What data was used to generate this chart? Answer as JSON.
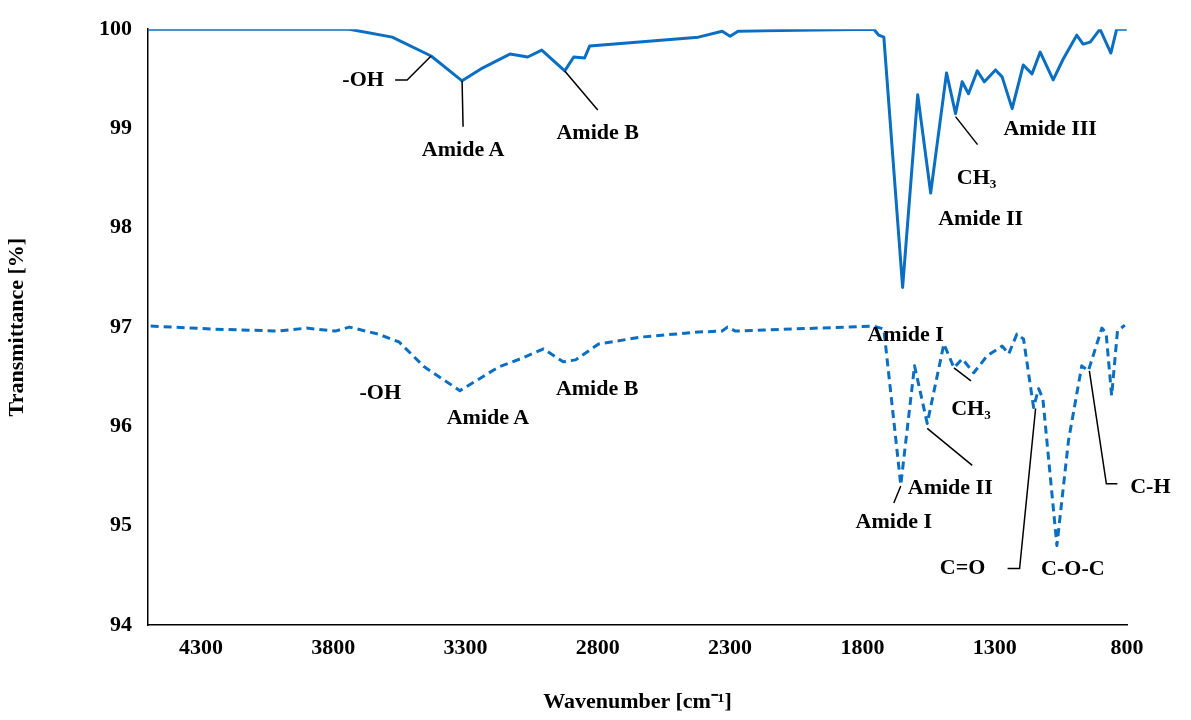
{
  "chart_data": {
    "type": "line",
    "xlabel": "Wavenumber [cm⁻¹]",
    "ylabel": "Transmittance [%]",
    "xlim": [
      4500,
      800
    ],
    "xticks": [
      4300,
      3800,
      3300,
      2800,
      2300,
      1800,
      1300,
      800
    ],
    "ylim": [
      94,
      100
    ],
    "yticks": [
      94,
      95,
      96,
      97,
      98,
      99,
      100
    ],
    "grid": false,
    "marker": "none",
    "series": [
      {
        "color": "#0a6fc2",
        "line_style": "solid",
        "x": [
          4500,
          3739,
          3577,
          3430,
          3313,
          3242,
          3132,
          3065,
          3012,
          2925,
          2891,
          2850,
          2831,
          2420,
          2330,
          2300,
          2270,
          1757,
          1738,
          1719,
          1648,
          1591,
          1542,
          1482,
          1448,
          1423,
          1399,
          1366,
          1339,
          1297,
          1272,
          1234,
          1192,
          1159,
          1128,
          1079,
          1041,
          990,
          966,
          939,
          902,
          861,
          839,
          801
        ],
        "values": [
          100.0,
          100.0,
          99.92,
          99.73,
          99.48,
          99.6,
          99.75,
          99.72,
          99.79,
          99.58,
          99.72,
          99.71,
          99.83,
          99.92,
          99.98,
          99.93,
          99.98,
          100.0,
          99.94,
          99.92,
          97.4,
          99.34,
          98.35,
          99.56,
          99.15,
          99.47,
          99.35,
          99.58,
          99.47,
          99.59,
          99.52,
          99.2,
          99.64,
          99.55,
          99.77,
          99.49,
          99.7,
          99.94,
          99.85,
          99.87,
          100.0,
          99.76,
          100.0,
          100.0
        ]
      },
      {
        "color": "#0a6fc2",
        "line_style": "dashed",
        "x": [
          4490,
          4250,
          4008,
          3901,
          3792,
          3739,
          3631,
          3551,
          3456,
          3321,
          3174,
          3093,
          3005,
          2931,
          2884,
          2797,
          2635,
          2420,
          2330,
          2310,
          2280,
          1757,
          1719,
          1655,
          1603,
          1555,
          1492,
          1454,
          1423,
          1379,
          1329,
          1272,
          1247,
          1216,
          1191,
          1153,
          1134,
          1118,
          1065,
          1021,
          971,
          946,
          895,
          879,
          858,
          836,
          808
        ],
        "values": [
          97.01,
          96.98,
          96.96,
          96.99,
          96.96,
          97.0,
          96.93,
          96.85,
          96.6,
          96.36,
          96.6,
          96.68,
          96.78,
          96.65,
          96.67,
          96.83,
          96.9,
          96.95,
          96.96,
          97.0,
          96.96,
          97.01,
          96.98,
          95.41,
          96.61,
          96.03,
          96.83,
          96.59,
          96.68,
          96.54,
          96.71,
          96.81,
          96.73,
          96.93,
          96.88,
          96.19,
          96.38,
          96.28,
          94.8,
          95.86,
          96.61,
          96.56,
          96.99,
          96.94,
          96.31,
          96.96,
          97.02
        ]
      }
    ],
    "annotations": [
      {
        "text": "-OH",
        "x": 3430,
        "y": 99.73
      },
      {
        "text": "Amide A",
        "x": 3313,
        "y": 99.48
      },
      {
        "text": "Amide B",
        "x": 2925,
        "y": 99.58
      },
      {
        "text": "Amide I",
        "x": 1648,
        "y": 97.4
      },
      {
        "text": "Amide II",
        "x": 1542,
        "y": 98.35
      },
      {
        "text": "CH₃",
        "x": 1448,
        "y": 99.15
      },
      {
        "text": "Amide III",
        "x": 1234,
        "y": 99.2
      },
      {
        "text": "-OH",
        "x": 3456,
        "y": 96.6
      },
      {
        "text": "Amide A",
        "x": 3321,
        "y": 96.36
      },
      {
        "text": "Amide B",
        "x": 2931,
        "y": 96.65
      },
      {
        "text": "Amide I",
        "x": 1655,
        "y": 95.41
      },
      {
        "text": "Amide II",
        "x": 1555,
        "y": 96.03
      },
      {
        "text": "CH₃",
        "x": 1454,
        "y": 96.59
      },
      {
        "text": "C=O",
        "x": 1153,
        "y": 96.19
      },
      {
        "text": "C-O-C",
        "x": 1065,
        "y": 94.8
      },
      {
        "text": "C-H",
        "x": 946,
        "y": 96.56
      }
    ]
  }
}
